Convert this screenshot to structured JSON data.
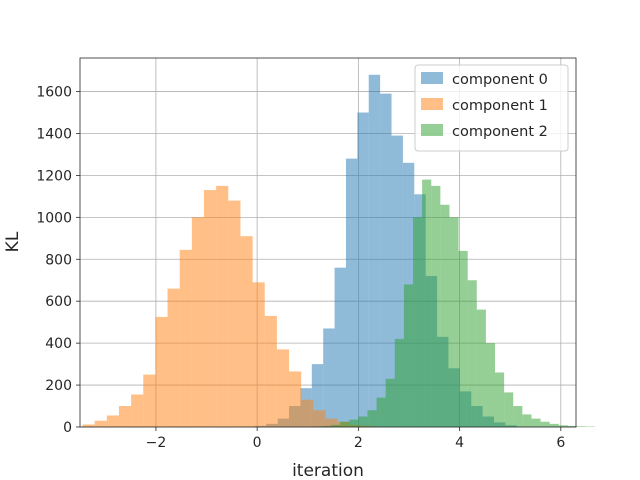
{
  "chart_data": {
    "type": "bar",
    "histogram": true,
    "xlabel": "iteration",
    "ylabel": "KL",
    "xlim": [
      -3.5,
      6.3
    ],
    "ylim": [
      0,
      1760
    ],
    "xticks": [
      -2,
      0,
      2,
      4,
      6
    ],
    "xtick_labels": [
      "−2",
      "0",
      "2",
      "4",
      "6"
    ],
    "yticks": [
      0,
      200,
      400,
      600,
      800,
      1000,
      1200,
      1400,
      1600
    ],
    "grid": true,
    "legend_position": "top-right",
    "series": [
      {
        "name": "component 0",
        "color": "#1f77b4",
        "alpha": 0.5,
        "start": -0.27,
        "bin_width": 0.225,
        "counts": [
          2,
          5,
          15,
          40,
          100,
          185,
          300,
          470,
          760,
          1280,
          1500,
          1680,
          1590,
          1390,
          1260,
          1110,
          720,
          430,
          280,
          170,
          100,
          50,
          22,
          8
        ]
      },
      {
        "name": "component 1",
        "color": "#ff7f0e",
        "alpha": 0.5,
        "start": -3.45,
        "bin_width": 0.24,
        "counts": [
          12,
          30,
          55,
          100,
          155,
          250,
          525,
          660,
          845,
          1000,
          1130,
          1150,
          1080,
          910,
          690,
          530,
          370,
          265,
          130,
          80,
          40,
          25,
          10,
          5
        ]
      },
      {
        "name": "component 2",
        "color": "#2ca02c",
        "alpha": 0.5,
        "start": 1.1,
        "bin_width": 0.18,
        "counts": [
          3,
          5,
          10,
          25,
          35,
          50,
          80,
          140,
          230,
          420,
          680,
          1000,
          1180,
          1150,
          1060,
          1000,
          840,
          700,
          560,
          400,
          260,
          165,
          100,
          60,
          40,
          25,
          15,
          8,
          5,
          3,
          2
        ]
      }
    ]
  }
}
